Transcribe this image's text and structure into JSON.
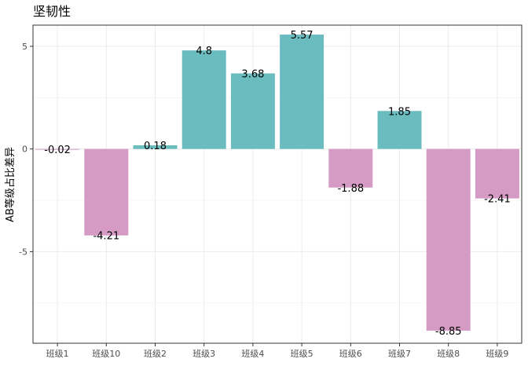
{
  "colors": {
    "positive": "#6bbcbf",
    "negative": "#d59bc4"
  },
  "chart_data": {
    "type": "bar",
    "title": "坚韧性",
    "xlabel": "",
    "ylabel": "AB等级占比差异",
    "categories": [
      "班级1",
      "班级10",
      "班级2",
      "班级3",
      "班级4",
      "班级5",
      "班级6",
      "班级7",
      "班级8",
      "班级9"
    ],
    "values": [
      -0.02,
      -4.21,
      0.18,
      4.8,
      3.68,
      5.57,
      -1.88,
      1.85,
      -8.85,
      -2.41
    ],
    "yticks": [
      -5,
      0,
      5
    ],
    "ylim": [
      -9.46,
      6.03
    ],
    "grid": true,
    "legend": "none"
  }
}
